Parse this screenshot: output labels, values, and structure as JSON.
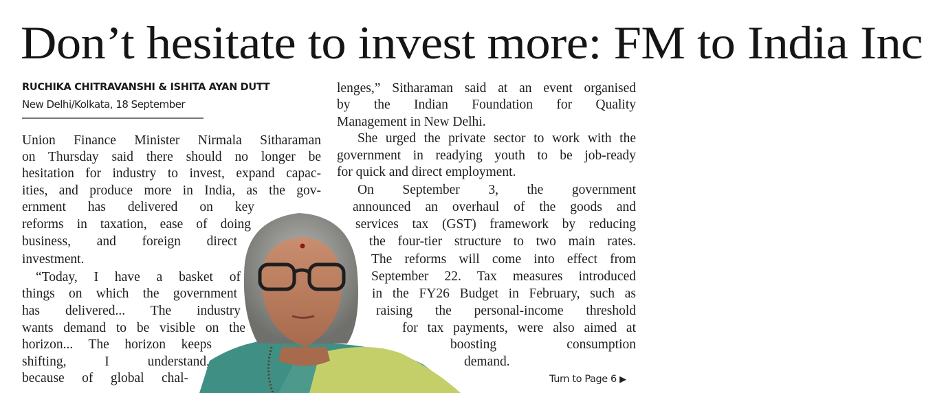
{
  "headline": "Don’t hesitate to invest more: FM to India Inc",
  "byline": "RUCHIKA CHITRAVANSHI & ISHITA AYAN DUTT",
  "dateline": "New Delhi/Kolkata, 18 September",
  "column1": [
    "Union Finance Minister Nirmala Sitharaman",
    "on Thursday said there should no longer be",
    "hesitation for industry to invest, expand capac-",
    "ities, and produce more in India, as the gov-",
    "ernment has delivered on key",
    "reforms in taxation, ease of doing",
    "business, and foreign direct",
    "investment.",
    "“Today, I have a basket of",
    "things on which the government",
    "has delivered... The industry",
    "wants demand to be visible on the",
    "horizon... The horizon keeps",
    "shifting, I understand,",
    "because of global chal-"
  ],
  "column2": [
    "lenges,” Sitharaman said at an event organised",
    "by the Indian Foundation for Quality",
    "Management in New Delhi.",
    "She urged the private sector to work with the",
    "government in readying youth to be job-ready",
    "for quick and direct employment.",
    "On September 3, the government",
    "announced an overhaul of the goods and",
    "services tax (GST) framework by reducing",
    "the four-tier structure to two main rates.",
    "The reforms will come into effect from",
    "September 22. Tax measures introduced",
    "in the FY26 Budget in February, such as",
    "raising the personal-income threshold",
    "for tax payments, were also aimed at",
    "boosting consumption",
    "demand."
  ],
  "continuation": "Turn to Page 6",
  "continuation_icon": "triangle-right-icon"
}
